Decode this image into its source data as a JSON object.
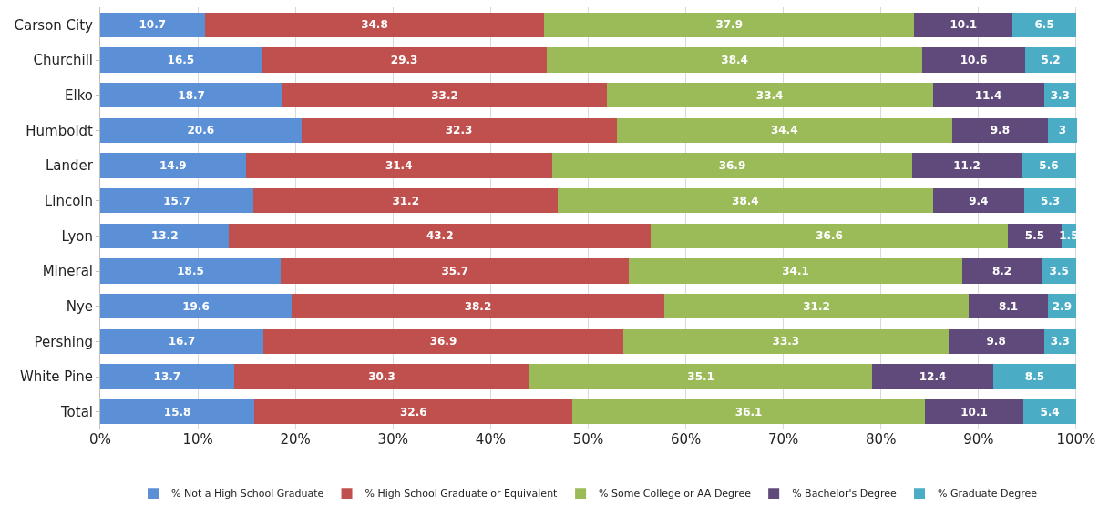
{
  "chart_data": {
    "type": "bar",
    "orientation": "horizontal",
    "stacked": true,
    "data_labels": true,
    "grid": "x",
    "legend": "bottom",
    "categories": [
      "Carson City",
      "Churchill",
      "Elko",
      "Humboldt",
      "Lander",
      "Lincoln",
      "Lyon",
      "Mineral",
      "Nye",
      "Pershing",
      "White Pine",
      "Total"
    ],
    "xlim": [
      0,
      100.1
    ],
    "xticks": [
      {
        "value": 0,
        "label": "0%"
      },
      {
        "value": 10,
        "label": "10%"
      },
      {
        "value": 20,
        "label": "20%"
      },
      {
        "value": 30,
        "label": "30%"
      },
      {
        "value": 40,
        "label": "40%"
      },
      {
        "value": 50,
        "label": "50%"
      },
      {
        "value": 60,
        "label": "60%"
      },
      {
        "value": 70,
        "label": "70%"
      },
      {
        "value": 80,
        "label": "80%"
      },
      {
        "value": 90,
        "label": "90%"
      },
      {
        "value": 100,
        "label": "100%"
      }
    ],
    "series": [
      {
        "name": "% Not a High School Graduate",
        "color": "#5b8fd6",
        "values": [
          10.7,
          16.5,
          18.7,
          20.6,
          14.9,
          15.7,
          13.2,
          18.5,
          19.6,
          16.7,
          13.7,
          15.8
        ]
      },
      {
        "name": "% High School Graduate or Equivalent",
        "color": "#c0504d",
        "values": [
          34.8,
          29.3,
          33.2,
          32.3,
          31.4,
          31.2,
          43.2,
          35.7,
          38.2,
          36.9,
          30.3,
          32.6
        ]
      },
      {
        "name": "% Some College or AA Degree",
        "color": "#9bbb59",
        "values": [
          37.9,
          38.4,
          33.4,
          34.4,
          36.9,
          38.4,
          36.6,
          34.1,
          31.2,
          33.3,
          35.1,
          36.1
        ]
      },
      {
        "name": "% Bachelor's Degree",
        "color": "#604a7b",
        "values": [
          10.1,
          10.6,
          11.4,
          9.8,
          11.2,
          9.4,
          5.5,
          8.2,
          8.1,
          9.8,
          12.4,
          10.1
        ]
      },
      {
        "name": "% Graduate Degree",
        "color": "#4bacc6",
        "values": [
          6.5,
          5.2,
          3.3,
          3,
          5.6,
          5.3,
          1.5,
          3.5,
          2.9,
          3.3,
          8.5,
          5.4
        ]
      }
    ]
  }
}
